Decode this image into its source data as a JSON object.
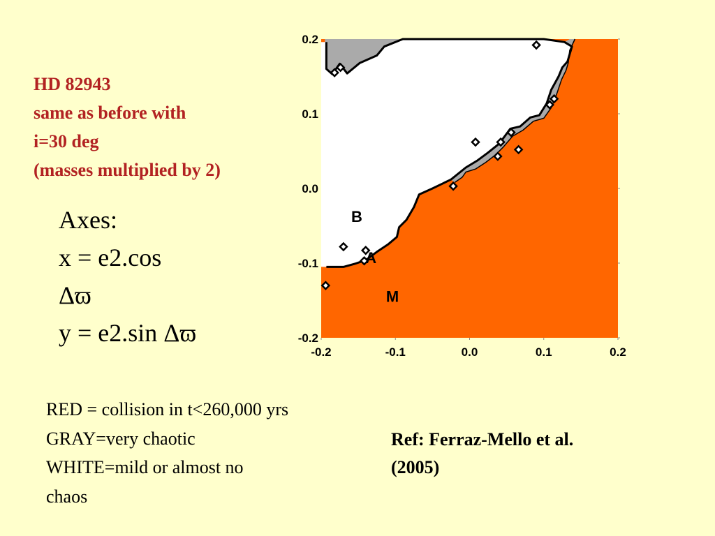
{
  "title": {
    "lines": [
      "HD  82943",
      "same as before with",
      "i=30 deg",
      "(masses multiplied by 2)"
    ]
  },
  "axes_text": {
    "heading": "Axes:",
    "x_line1": "x = e2.cos",
    "x_line2": "Δϖ",
    "y_line": "y = e2.sin Δϖ"
  },
  "legend": {
    "lines": [
      "RED = collision in t<260,000 yrs",
      "GRAY=very chaotic",
      "WHITE=mild or almost no",
      "chaos"
    ]
  },
  "reference": {
    "lines": [
      "Ref: Ferraz-Mello et al.",
      "(2005)"
    ]
  },
  "colors": {
    "background": "#ffffcc",
    "collision": "#ff6600",
    "chaotic": "#aaaaaa",
    "regular": "#ffffff",
    "title_text": "#b22222"
  },
  "chart_data": {
    "type": "heatmap",
    "title": "",
    "xlabel": "",
    "ylabel": "",
    "xlim": [
      -0.2,
      0.2
    ],
    "ylim": [
      -0.2,
      0.2
    ],
    "xticks": [
      -0.2,
      -0.1,
      0.0,
      0.1,
      0.2
    ],
    "yticks": [
      -0.2,
      -0.1,
      0.0,
      0.1,
      0.2
    ],
    "xtick_labels": [
      "-0.2",
      "-0.1",
      "0.0",
      "0.1",
      "0.2"
    ],
    "ytick_labels": [
      "-0.2",
      "-0.1",
      "0.0",
      "0.1",
      "0.2"
    ],
    "grid": false,
    "regions": [
      {
        "name": "RED",
        "meaning": "collision in t<260,000 yrs",
        "color": "#ff6600"
      },
      {
        "name": "GRAY",
        "meaning": "very chaotic",
        "color": "#aaaaaa"
      },
      {
        "name": "WHITE",
        "meaning": "mild or almost no chaos",
        "color": "#ffffff"
      }
    ],
    "white_region_boundary": [
      [
        -0.193,
        0.196
      ],
      [
        -0.193,
        0.16
      ],
      [
        -0.185,
        0.153
      ],
      [
        -0.175,
        0.167
      ],
      [
        -0.165,
        0.154
      ],
      [
        -0.148,
        0.168
      ],
      [
        -0.125,
        0.178
      ],
      [
        -0.115,
        0.19
      ],
      [
        -0.09,
        0.2
      ],
      [
        0.1,
        0.2
      ],
      [
        0.128,
        0.196
      ],
      [
        0.138,
        0.19
      ],
      [
        0.132,
        0.17
      ],
      [
        0.125,
        0.162
      ],
      [
        0.12,
        0.15
      ],
      [
        0.11,
        0.132
      ],
      [
        0.104,
        0.114
      ],
      [
        0.094,
        0.098
      ],
      [
        0.082,
        0.095
      ],
      [
        0.068,
        0.083
      ],
      [
        0.055,
        0.08
      ],
      [
        0.04,
        0.06
      ],
      [
        0.025,
        0.048
      ],
      [
        0.01,
        0.037
      ],
      [
        -0.005,
        0.028
      ],
      [
        -0.025,
        0.012
      ],
      [
        -0.05,
        0.0
      ],
      [
        -0.068,
        -0.008
      ],
      [
        -0.075,
        -0.025
      ],
      [
        -0.085,
        -0.042
      ],
      [
        -0.095,
        -0.052
      ],
      [
        -0.098,
        -0.065
      ],
      [
        -0.11,
        -0.075
      ],
      [
        -0.125,
        -0.085
      ],
      [
        -0.14,
        -0.096
      ],
      [
        -0.155,
        -0.101
      ],
      [
        -0.17,
        -0.105
      ],
      [
        -0.193,
        -0.105
      ],
      [
        -0.2,
        -0.105
      ],
      [
        -0.2,
        0.196
      ]
    ],
    "gray_region": [
      [
        -0.195,
        0.185
      ],
      [
        -0.2,
        0.18
      ],
      [
        -0.2,
        0.152
      ],
      [
        -0.192,
        0.155
      ],
      [
        -0.18,
        0.15
      ],
      [
        -0.165,
        0.152
      ],
      [
        -0.15,
        0.164
      ],
      [
        -0.13,
        0.17
      ],
      [
        -0.118,
        0.16
      ],
      [
        -0.108,
        0.178
      ],
      [
        -0.095,
        0.193
      ],
      [
        -0.08,
        0.2
      ],
      [
        -0.195,
        0.2
      ]
    ],
    "gray_band": [
      [
        0.135,
        0.2
      ],
      [
        0.142,
        0.2
      ],
      [
        0.135,
        0.185
      ],
      [
        0.133,
        0.168
      ],
      [
        0.13,
        0.158
      ],
      [
        0.124,
        0.146
      ],
      [
        0.118,
        0.128
      ],
      [
        0.11,
        0.108
      ],
      [
        0.1,
        0.094
      ],
      [
        0.086,
        0.09
      ],
      [
        0.072,
        0.078
      ],
      [
        0.058,
        0.07
      ],
      [
        0.045,
        0.055
      ],
      [
        0.035,
        0.045
      ],
      [
        0.022,
        0.035
      ],
      [
        0.008,
        0.026
      ],
      [
        -0.005,
        0.022
      ],
      [
        -0.01,
        0.015
      ],
      [
        -0.02,
        0.008
      ],
      [
        -0.025,
        0.012
      ],
      [
        -0.005,
        0.028
      ],
      [
        0.01,
        0.037
      ],
      [
        0.025,
        0.048
      ],
      [
        0.04,
        0.06
      ],
      [
        0.055,
        0.08
      ],
      [
        0.068,
        0.083
      ],
      [
        0.082,
        0.095
      ],
      [
        0.094,
        0.098
      ],
      [
        0.104,
        0.114
      ],
      [
        0.11,
        0.132
      ],
      [
        0.12,
        0.15
      ],
      [
        0.125,
        0.162
      ],
      [
        0.132,
        0.17
      ],
      [
        0.138,
        0.19
      ],
      [
        0.128,
        0.196
      ]
    ],
    "islands": [
      [
        -0.182,
        0.155
      ],
      [
        -0.174,
        0.162
      ],
      [
        -0.194,
        -0.13
      ],
      [
        -0.17,
        -0.078
      ],
      [
        -0.142,
        -0.097
      ],
      [
        -0.14,
        -0.083
      ],
      [
        0.09,
        0.192
      ],
      [
        0.008,
        0.062
      ],
      [
        -0.022,
        0.003
      ],
      [
        0.042,
        0.062
      ],
      [
        0.056,
        0.075
      ],
      [
        0.038,
        0.043
      ],
      [
        0.066,
        0.052
      ],
      [
        0.108,
        0.112
      ],
      [
        0.114,
        0.12
      ]
    ],
    "region_labels": [
      {
        "text": "B",
        "x": -0.152,
        "y": -0.045
      },
      {
        "text": "A",
        "x": -0.133,
        "y": -0.1
      },
      {
        "text": "M",
        "x": -0.104,
        "y": -0.152
      }
    ]
  }
}
